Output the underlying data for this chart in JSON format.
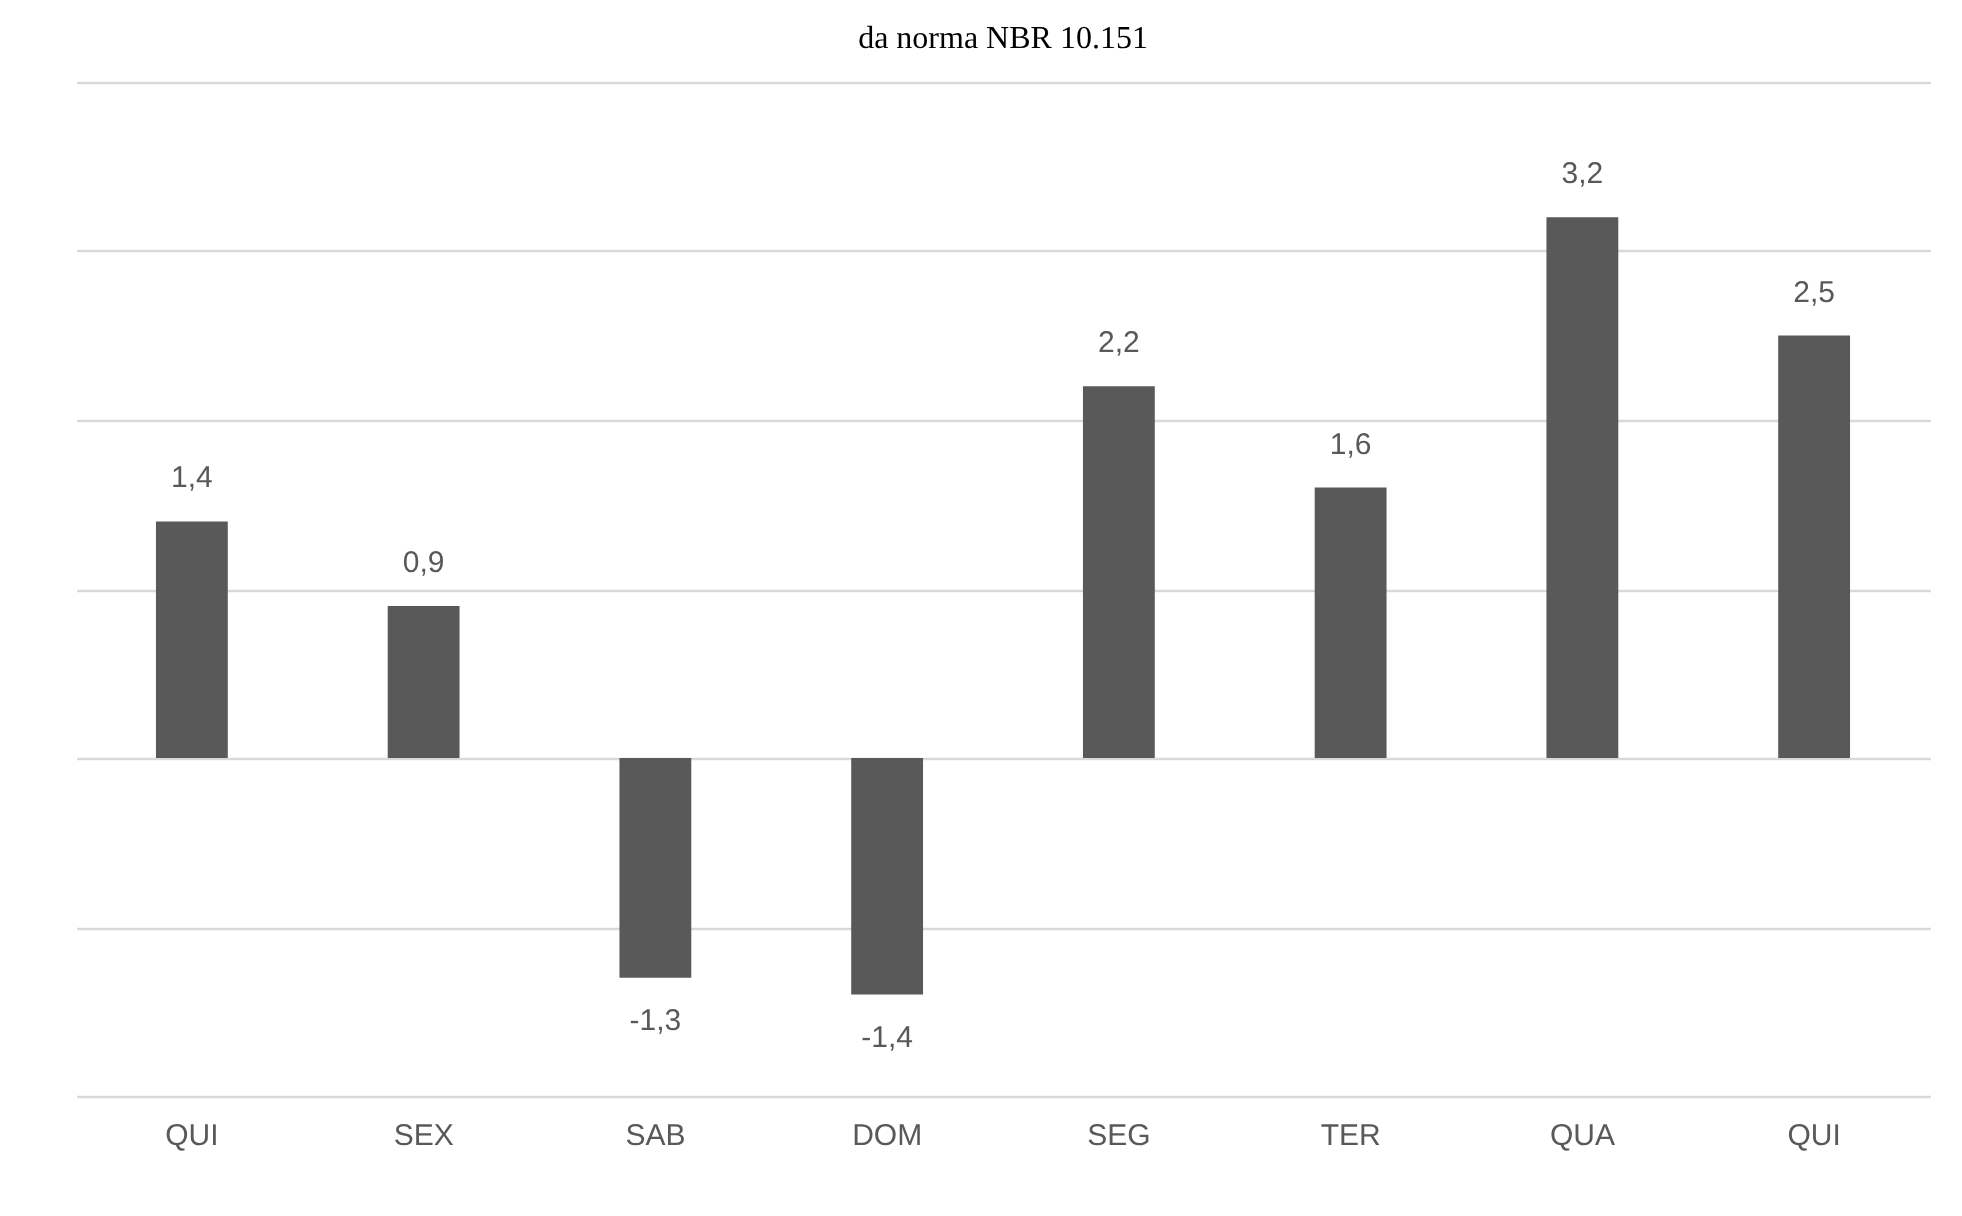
{
  "chart_data": {
    "type": "bar",
    "title": "da norma NBR 10.151",
    "categories": [
      "QUI",
      "SEX",
      "SAB",
      "DOM",
      "SEG",
      "TER",
      "QUA",
      "QUI"
    ],
    "values": [
      1.4,
      0.9,
      -1.3,
      -1.4,
      2.2,
      1.6,
      3.2,
      2.5
    ],
    "value_labels": [
      "1,4",
      "0,9",
      "-1,3",
      "-1,4",
      "2,2",
      "1,6",
      "3,2",
      "2,5"
    ],
    "color": "#595959",
    "ylim": [
      -2,
      4
    ],
    "yticks": [
      -2,
      -1,
      0,
      1,
      2,
      3,
      4
    ],
    "grid": "y",
    "tick_labels": "x"
  }
}
